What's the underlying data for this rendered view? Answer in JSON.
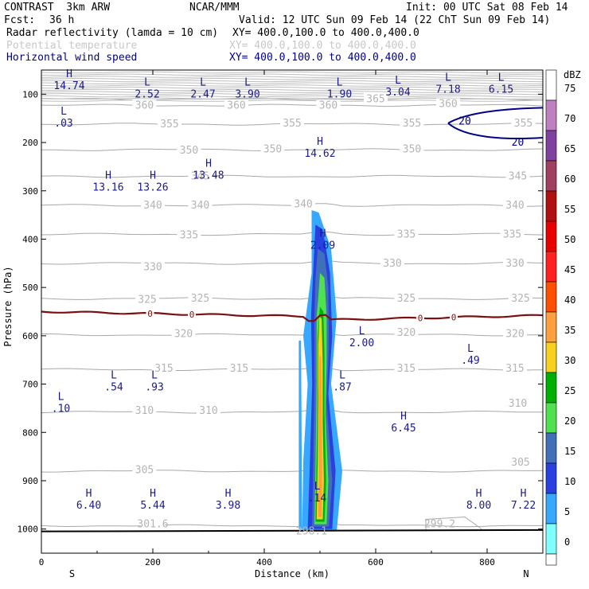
{
  "header": {
    "model": "CONTRAST  3km ARW",
    "org": "NCAR/MMM",
    "init": "Init: 00 UTC Sat 08 Feb 14",
    "fcst_label": "Fcst:",
    "fcst_value": "36 h",
    "valid": "Valid: 12 UTC Sun 09 Feb 14 (22 ChT Sun 09 Feb 14)",
    "fields": [
      {
        "name": "Radar reflectivity (lamda = 10 cm)",
        "xy": "XY= 400.0,100.0 to 400.0,400.0"
      },
      {
        "name": "Potential temperature",
        "xy": "XY= 400.0,100.0 to 400.0,400.0"
      },
      {
        "name": "Horizontal wind speed",
        "xy": "XY= 400.0,100.0 to 400.0,400.0"
      }
    ]
  },
  "colors": {
    "theta": "#a8a8a8",
    "wind": "#00008b",
    "freezing": "#7b1010",
    "text_blue": "#1a1a8c"
  },
  "chart_data": {
    "type": "cross-section",
    "xlabel": "Distance (km)",
    "ylabel": "Pressure (hPa)",
    "xlim": [
      0,
      900
    ],
    "ylim": [
      1050,
      50
    ],
    "x_ticks": [
      0,
      200,
      400,
      600,
      800
    ],
    "y_ticks": [
      100,
      200,
      300,
      400,
      500,
      600,
      700,
      800,
      900,
      1000
    ],
    "end_labels": {
      "left": "S",
      "right": "N"
    },
    "colorbar": {
      "unit": "dBZ",
      "levels": [
        75,
        70,
        65,
        60,
        55,
        50,
        45,
        40,
        35,
        30,
        25,
        20,
        15,
        10,
        5,
        0
      ],
      "colors": [
        "#ffffff",
        "#c080c0",
        "#8040a0",
        "#a04060",
        "#b01010",
        "#e80000",
        "#ff2020",
        "#ff5000",
        "#ffa040",
        "#f8d020",
        "#00b000",
        "#50e050",
        "#4070b8",
        "#2840e0",
        "#38a8ff",
        "#80ffff"
      ]
    },
    "theta_levels": [
      {
        "v": 300,
        "p": 993
      },
      {
        "v": 305,
        "p": 880
      },
      {
        "v": 310,
        "p": 758
      },
      {
        "v": 315,
        "p": 670
      },
      {
        "v": 320,
        "p": 598
      },
      {
        "v": 325,
        "p": 523
      },
      {
        "v": 330,
        "p": 450
      },
      {
        "v": 335,
        "p": 390
      },
      {
        "v": 340,
        "p": 330
      },
      {
        "v": 345,
        "p": 270
      },
      {
        "v": 350,
        "p": 215
      },
      {
        "v": 355,
        "p": 162
      },
      {
        "v": 360,
        "p": 123
      },
      {
        "v": 365,
        "p": 110
      }
    ],
    "theta_labels": [
      {
        "x": 200,
        "p": 990,
        "t": "301.6"
      },
      {
        "x": 185,
        "p": 878,
        "t": "305"
      },
      {
        "x": 860,
        "p": 862,
        "t": "305"
      },
      {
        "x": 185,
        "p": 755,
        "t": "310"
      },
      {
        "x": 300,
        "p": 755,
        "t": "310"
      },
      {
        "x": 855,
        "p": 740,
        "t": "310"
      },
      {
        "x": 220,
        "p": 668,
        "t": "315"
      },
      {
        "x": 355,
        "p": 668,
        "t": "315"
      },
      {
        "x": 655,
        "p": 668,
        "t": "315"
      },
      {
        "x": 850,
        "p": 668,
        "t": "315"
      },
      {
        "x": 255,
        "p": 596,
        "t": "320"
      },
      {
        "x": 655,
        "p": 594,
        "t": "320"
      },
      {
        "x": 850,
        "p": 596,
        "t": "320"
      },
      {
        "x": 190,
        "p": 525,
        "t": "325"
      },
      {
        "x": 285,
        "p": 523,
        "t": "325"
      },
      {
        "x": 655,
        "p": 523,
        "t": "325"
      },
      {
        "x": 860,
        "p": 523,
        "t": "325"
      },
      {
        "x": 200,
        "p": 458,
        "t": "330"
      },
      {
        "x": 630,
        "p": 450,
        "t": "330"
      },
      {
        "x": 850,
        "p": 450,
        "t": "330"
      },
      {
        "x": 265,
        "p": 392,
        "t": "335"
      },
      {
        "x": 655,
        "p": 390,
        "t": "335"
      },
      {
        "x": 845,
        "p": 390,
        "t": "335"
      },
      {
        "x": 200,
        "p": 330,
        "t": "340"
      },
      {
        "x": 285,
        "p": 330,
        "t": "340"
      },
      {
        "x": 470,
        "p": 328,
        "t": "340"
      },
      {
        "x": 850,
        "p": 330,
        "t": "340"
      },
      {
        "x": 285,
        "p": 270,
        "t": "345"
      },
      {
        "x": 855,
        "p": 270,
        "t": "345"
      },
      {
        "x": 265,
        "p": 216,
        "t": "350"
      },
      {
        "x": 415,
        "p": 214,
        "t": "350"
      },
      {
        "x": 665,
        "p": 214,
        "t": "350"
      },
      {
        "x": 230,
        "p": 162,
        "t": "355"
      },
      {
        "x": 450,
        "p": 160,
        "t": "355"
      },
      {
        "x": 665,
        "p": 160,
        "t": "355"
      },
      {
        "x": 865,
        "p": 160,
        "t": "355"
      },
      {
        "x": 185,
        "p": 123,
        "t": "360"
      },
      {
        "x": 350,
        "p": 123,
        "t": "360"
      },
      {
        "x": 515,
        "p": 123,
        "t": "360"
      },
      {
        "x": 730,
        "p": 120,
        "t": "360"
      },
      {
        "x": 600,
        "p": 110,
        "t": "365"
      }
    ],
    "freezing_level": {
      "label": "0",
      "p_left": 550,
      "p_mid": 570,
      "p_right": 558,
      "label_x": [
        195,
        270,
        680,
        740
      ]
    },
    "wind_contour": {
      "value": 20,
      "labels_x": [
        760,
        855
      ]
    },
    "extrema": [
      {
        "type": "H",
        "x": 50,
        "p": 65,
        "value": "14.74"
      },
      {
        "type": "L",
        "x": 190,
        "p": 82,
        "value": "2.52"
      },
      {
        "type": "L",
        "x": 290,
        "p": 82,
        "value": "2.47"
      },
      {
        "type": "L",
        "x": 370,
        "p": 82,
        "value": "3.90"
      },
      {
        "type": "L",
        "x": 535,
        "p": 82,
        "value": "1.90"
      },
      {
        "type": "L",
        "x": 640,
        "p": 78,
        "value": "3.04"
      },
      {
        "type": "L",
        "x": 730,
        "p": 72,
        "value": "7.18"
      },
      {
        "type": "L",
        "x": 825,
        "p": 72,
        "value": "6.15"
      },
      {
        "type": "L",
        "x": 40,
        "p": 142,
        "value": ".03"
      },
      {
        "type": "H",
        "x": 500,
        "p": 205,
        "value": "14.62"
      },
      {
        "type": "H",
        "x": 300,
        "p": 250,
        "value": "13.48"
      },
      {
        "type": "H",
        "x": 120,
        "p": 275,
        "value": "13.16"
      },
      {
        "type": "H",
        "x": 200,
        "p": 275,
        "value": "13.26"
      },
      {
        "type": "H",
        "x": 505,
        "p": 395,
        "value": "2.09"
      },
      {
        "type": "L",
        "x": 575,
        "p": 597,
        "value": "2.00"
      },
      {
        "type": "L",
        "x": 770,
        "p": 633,
        "value": ".49"
      },
      {
        "type": "L",
        "x": 130,
        "p": 688,
        "value": ".54"
      },
      {
        "type": "L",
        "x": 203,
        "p": 688,
        "value": ".93"
      },
      {
        "type": "L",
        "x": 540,
        "p": 688,
        "value": ".87"
      },
      {
        "type": "L",
        "x": 35,
        "p": 733,
        "value": ".10"
      },
      {
        "type": "H",
        "x": 650,
        "p": 773,
        "value": "6.45"
      },
      {
        "type": "H",
        "x": 85,
        "p": 933,
        "value": "6.40"
      },
      {
        "type": "H",
        "x": 200,
        "p": 933,
        "value": "5.44"
      },
      {
        "type": "H",
        "x": 335,
        "p": 933,
        "value": "3.98"
      },
      {
        "type": "L",
        "x": 495,
        "p": 918,
        "value": ".14"
      },
      {
        "type": "H",
        "x": 785,
        "p": 933,
        "value": "8.00"
      },
      {
        "type": "H",
        "x": 865,
        "p": 933,
        "value": "7.22"
      }
    ],
    "surface_labels": [
      {
        "x": 485,
        "p": 1005,
        "t": "298.1"
      },
      {
        "x": 715,
        "p": 990,
        "t": "299.2"
      }
    ],
    "reflectivity_column": {
      "x_center": 505,
      "top_p": 340,
      "bottom_p": 1005,
      "layers_dbz": [
        5,
        10,
        15,
        20,
        25,
        30,
        35
      ]
    }
  }
}
